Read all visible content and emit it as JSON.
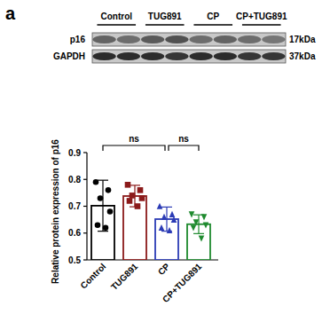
{
  "panel_label": "a",
  "blot": {
    "groups": [
      "Control",
      "TUG891",
      "CP",
      "CP+TUG891"
    ],
    "rows": [
      {
        "label": "p16",
        "size": "17kDa"
      },
      {
        "label": "GAPDH",
        "size": "37kDa"
      }
    ]
  },
  "chart_data": {
    "type": "bar",
    "y_label": "Relative protein expression of p16",
    "categories": [
      "Control",
      "TUG891",
      "CP",
      "CP+TUG891"
    ],
    "values": [
      0.702,
      0.738,
      0.652,
      0.633
    ],
    "errors": [
      0.095,
      0.04,
      0.045,
      0.035
    ],
    "points": [
      [
        0.79,
        0.76,
        0.73,
        0.68,
        0.63,
        0.62
      ],
      [
        0.78,
        0.76,
        0.74,
        0.73,
        0.72,
        0.7
      ],
      [
        0.7,
        0.67,
        0.66,
        0.65,
        0.62,
        0.61
      ],
      [
        0.67,
        0.66,
        0.64,
        0.63,
        0.62,
        0.58
      ]
    ],
    "colors": [
      "#000000",
      "#8b1a1a",
      "#2b3bb5",
      "#1e8a2e"
    ],
    "markers": [
      "circle",
      "square",
      "triangle-up",
      "triangle-down"
    ],
    "comparisons": [
      {
        "groups": [
          0,
          2
        ],
        "label": "ns"
      },
      {
        "groups": [
          2,
          3
        ],
        "label": "ns"
      }
    ],
    "ylim": [
      0.5,
      0.9
    ],
    "yticks": [
      0.5,
      0.6,
      0.7,
      0.8,
      0.9
    ],
    "grid": false
  }
}
